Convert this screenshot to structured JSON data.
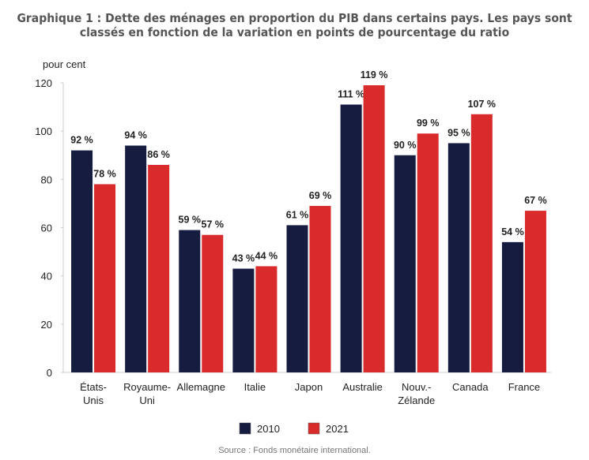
{
  "title_line1": "Graphique 1 : Dette des ménages en proportion du PIB dans certains pays. Les pays sont",
  "title_line2": "classés en fonction de la variation en points de pourcentage du ratio",
  "source": "Source : Fonds monétaire international.",
  "colors": {
    "2010": "#151c3f",
    "2021": "#d92b2b"
  },
  "chart_data": {
    "type": "bar",
    "title": "Graphique 1 : Dette des ménages en proportion du PIB dans certains pays. Les pays sont classés en fonction de la variation en points de pourcentage du ratio",
    "ylabel": "pour cent",
    "ylim": [
      0,
      120
    ],
    "yticks": [
      0,
      20,
      40,
      60,
      80,
      100,
      120
    ],
    "grid": false,
    "legend": "bottom",
    "categories": [
      [
        "États-",
        "Unis"
      ],
      [
        "Royaume-",
        "Uni"
      ],
      [
        "Allemagne"
      ],
      [
        "Italie"
      ],
      [
        "Japon"
      ],
      [
        "Australie"
      ],
      [
        "Nouv.-",
        "Zélande"
      ],
      [
        "Canada"
      ],
      [
        "France"
      ]
    ],
    "series": [
      {
        "name": "2010",
        "values": [
          92,
          94,
          59,
          43,
          61,
          111,
          90,
          95,
          54
        ],
        "labels": [
          "92 %",
          "94 %",
          "59 %",
          "43 %",
          "61 %",
          "111 %",
          "90 %",
          "95 %",
          "54 %"
        ]
      },
      {
        "name": "2021",
        "values": [
          78,
          86,
          57,
          44,
          69,
          119,
          99,
          107,
          67
        ],
        "labels": [
          "78 %",
          "86 %",
          "57 %",
          "44 %",
          "69 %",
          "119 %",
          "99 %",
          "107 %",
          "67 %"
        ]
      }
    ]
  }
}
